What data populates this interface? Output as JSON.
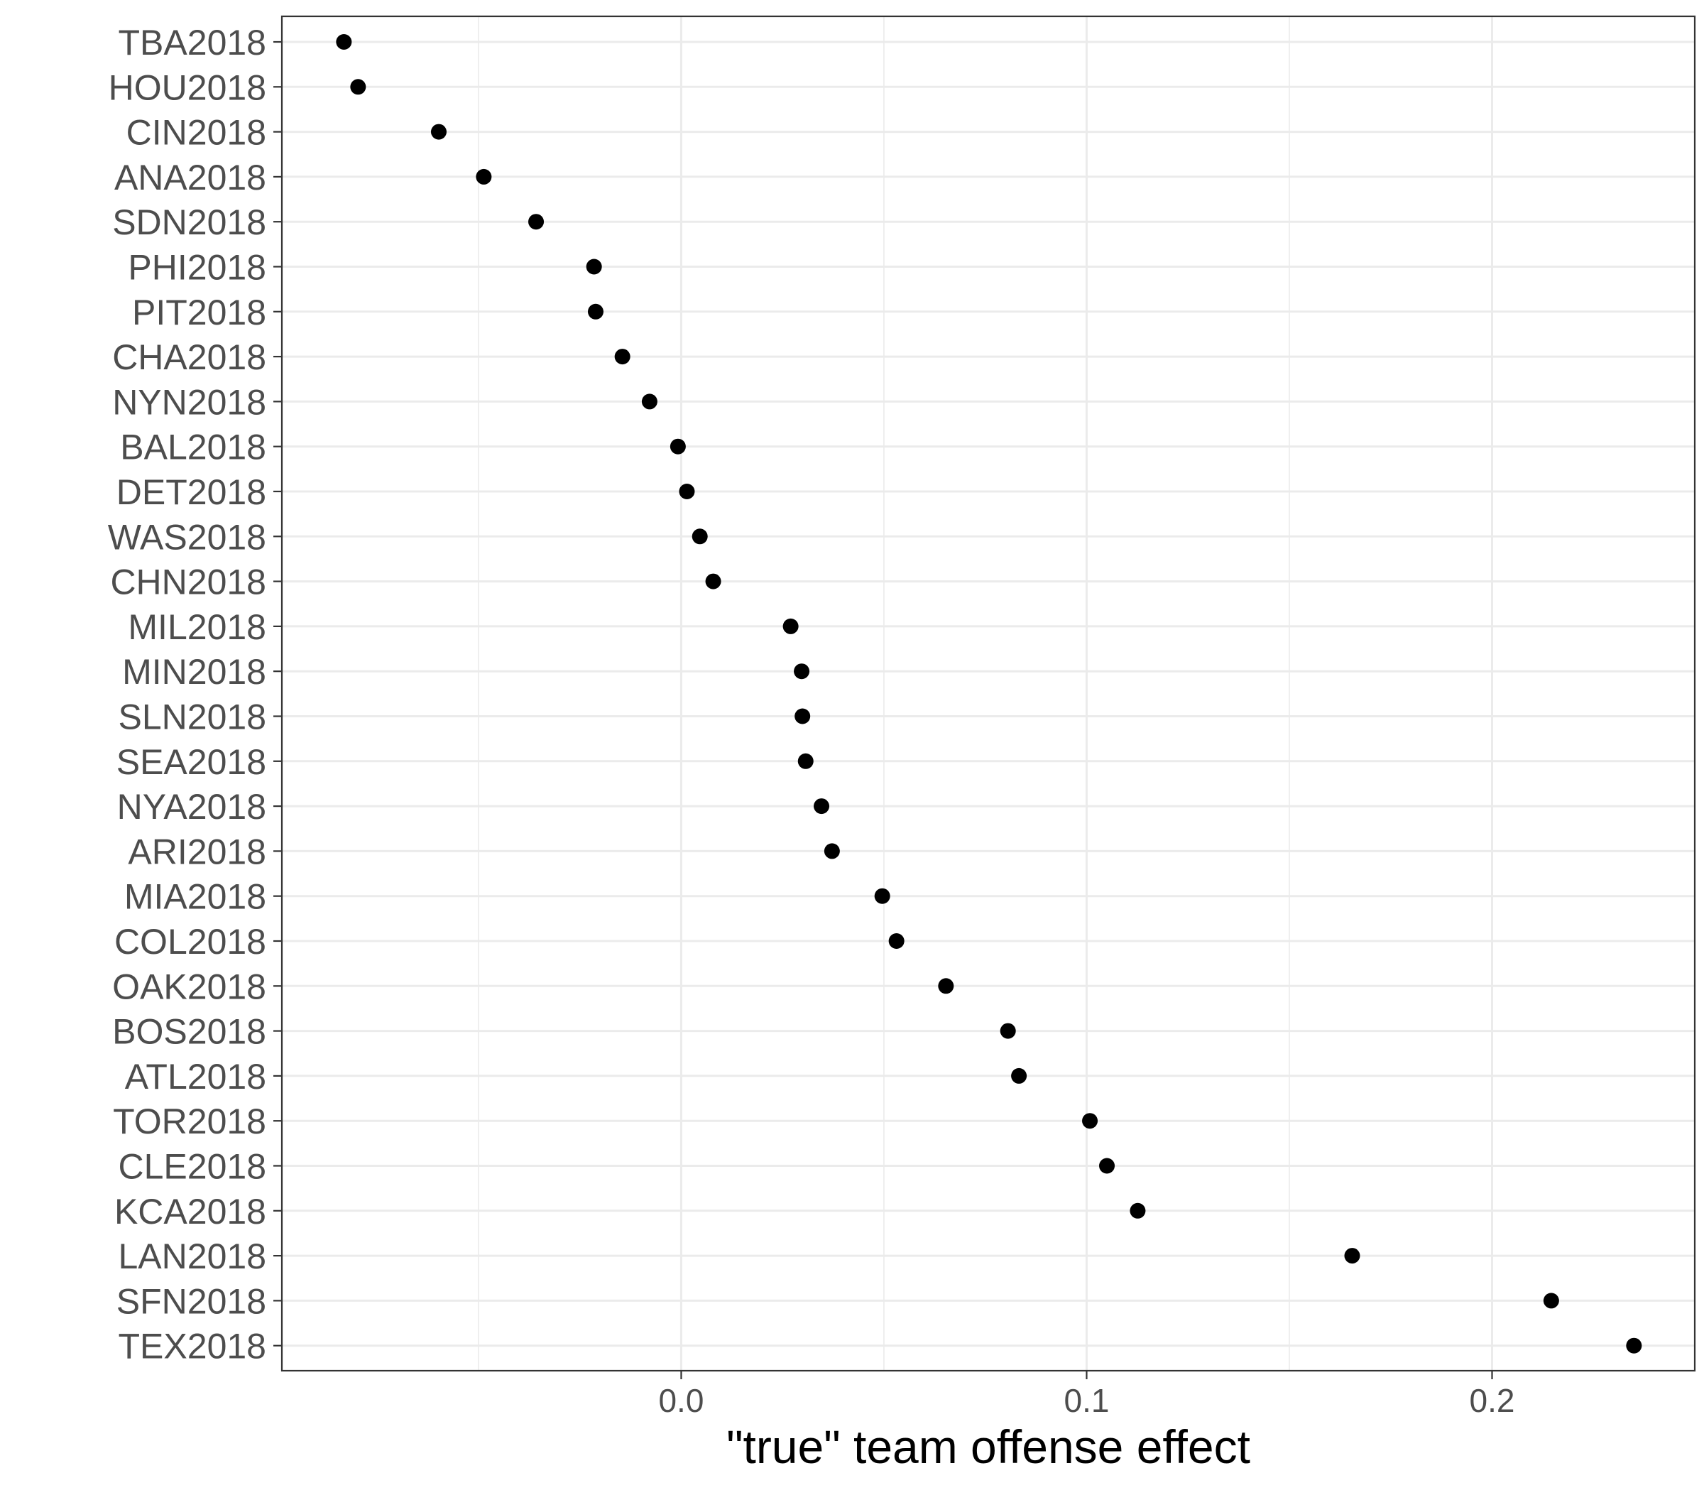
{
  "chart_data": {
    "type": "scatter",
    "title": "",
    "xlabel": "\"true\" team offense effect",
    "ylabel": "",
    "xlim": [
      -0.0985,
      0.25
    ],
    "x_ticks": [
      0.0,
      0.1,
      0.2
    ],
    "x_tick_labels": [
      "0.0",
      "0.1",
      "0.2"
    ],
    "grid": true,
    "legend": "none",
    "point_color": "#000000",
    "categories": [
      "TBA2018",
      "HOU2018",
      "CIN2018",
      "ANA2018",
      "SDN2018",
      "PHI2018",
      "PIT2018",
      "CHA2018",
      "NYN2018",
      "BAL2018",
      "DET2018",
      "WAS2018",
      "CHN2018",
      "MIL2018",
      "MIN2018",
      "SLN2018",
      "SEA2018",
      "NYA2018",
      "ARI2018",
      "MIA2018",
      "COL2018",
      "OAK2018",
      "BOS2018",
      "ATL2018",
      "TOR2018",
      "CLE2018",
      "KCA2018",
      "LAN2018",
      "SFN2018",
      "TEX2018"
    ],
    "values": [
      -0.0832,
      -0.0797,
      -0.0598,
      -0.0487,
      -0.0358,
      -0.0215,
      -0.0211,
      -0.0145,
      -0.0078,
      -0.0008,
      0.0014,
      0.0046,
      0.0079,
      0.027,
      0.0297,
      0.0299,
      0.0307,
      0.0346,
      0.0372,
      0.0496,
      0.0531,
      0.0653,
      0.0806,
      0.0833,
      0.1008,
      0.105,
      0.1126,
      0.1655,
      0.2146,
      0.235
    ]
  }
}
